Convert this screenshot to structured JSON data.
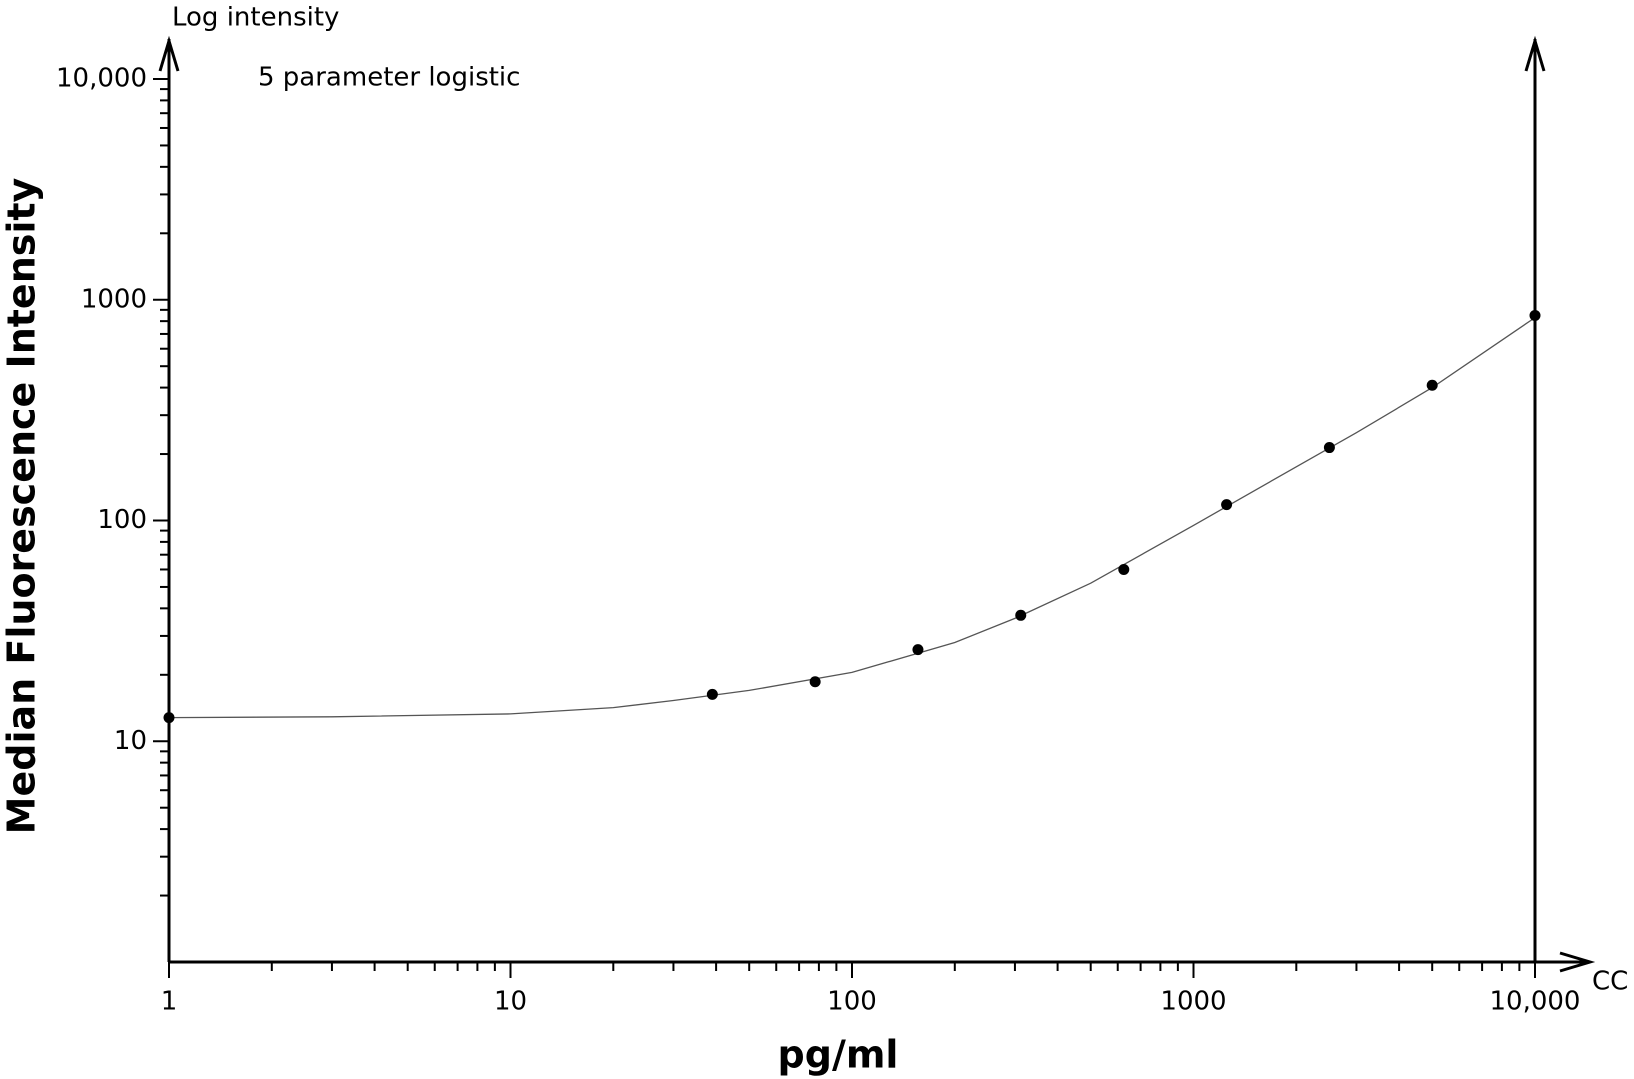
{
  "chart_data": {
    "type": "scatter",
    "y_top_label": "Log intensity",
    "annotation": "5 parameter logistic",
    "y_axis_label": "Median Fluorescence Intensity",
    "x_axis_label": "pg/ml",
    "x_end_label": "CC",
    "xscale": "log",
    "yscale": "log",
    "xlim": [
      1,
      10000
    ],
    "ylim": [
      1,
      10000
    ],
    "xticks": [
      1,
      10,
      100,
      1000,
      {
        "value": 10000,
        "label": "10,000"
      }
    ],
    "yticks": [
      10,
      100,
      1000,
      {
        "value": 10000,
        "label": "10,000"
      }
    ],
    "series": [
      {
        "color": "#000000",
        "x": [
          1,
          39,
          78,
          156,
          312,
          625,
          1250,
          2500,
          5000,
          10000
        ],
        "values": [
          12.8,
          16.3,
          18.6,
          26,
          37.2,
          60,
          118,
          214,
          410,
          849
        ]
      }
    ],
    "fit_curve": {
      "color": "#555555",
      "x": [
        1,
        3,
        10,
        20,
        30,
        50,
        100,
        200,
        300,
        500,
        1000,
        2000,
        3000,
        5000,
        10000
      ],
      "values": [
        12.8,
        12.9,
        13.3,
        14.2,
        15.3,
        17,
        20.5,
        28,
        36,
        52,
        95,
        175,
        250,
        400,
        830
      ]
    }
  }
}
